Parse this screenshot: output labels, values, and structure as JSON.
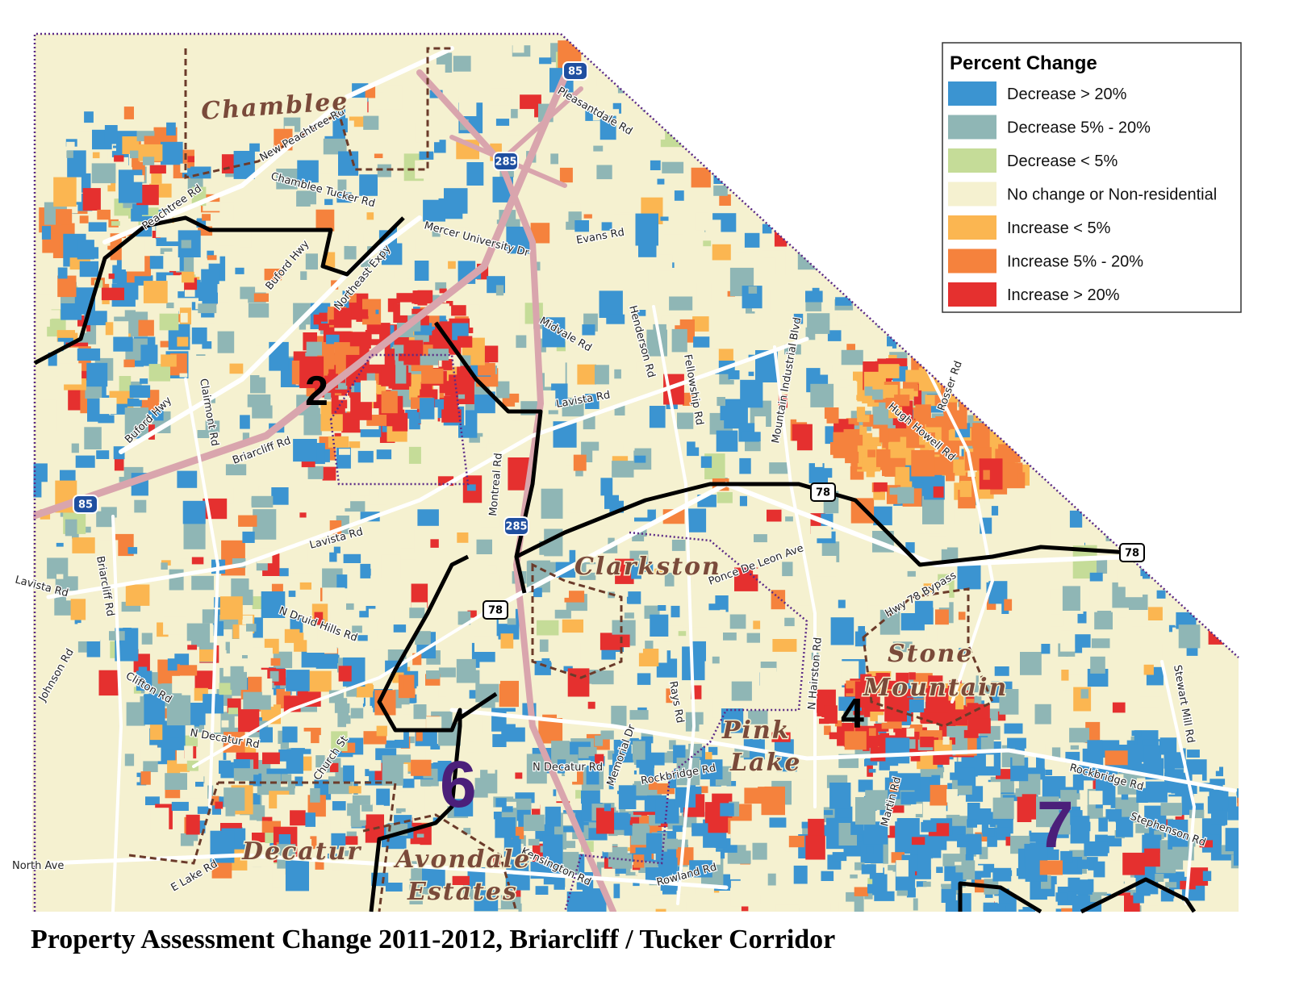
{
  "title": "Property Assessment Change 2011-2012, Briarcliff / Tucker Corridor",
  "legend": {
    "title": "Percent Change",
    "items": [
      {
        "label": "Decrease > 20%",
        "color": "#3b94d1"
      },
      {
        "label": "Decrease 5% - 20%",
        "color": "#8fb6b5"
      },
      {
        "label": "Decrease < 5%",
        "color": "#c5dc98"
      },
      {
        "label": "No change or Non-residential",
        "color": "#f5f1d0"
      },
      {
        "label": "Increase < 5%",
        "color": "#fbb651"
      },
      {
        "label": "Increase 5% - 20%",
        "color": "#f5823d"
      },
      {
        "label": "Increase > 20%",
        "color": "#e5302f"
      }
    ]
  },
  "places": {
    "chamblee": "Chamblee",
    "clarkston": "Clarkston",
    "stone_mountain": [
      "Stone",
      "Mountain"
    ],
    "pine_lake": [
      "Pink",
      "Lake"
    ],
    "decatur": "Decatur",
    "avondale_estates": [
      "Avondale",
      "Estates"
    ]
  },
  "districts": [
    "2",
    "4",
    "6",
    "7"
  ],
  "shields": [
    "85",
    "285",
    "85",
    "285",
    "78",
    "78",
    "78"
  ],
  "roads": [
    "Peachtree Rd",
    "New Peachtree Rd",
    "Buford Hwy",
    "Northeast Expy",
    "Briarcliff Rd",
    "Lavista Rd",
    "Montreal Rd",
    "Midvale Rd",
    "Mountain Industrial Blvd",
    "Rosser Rd",
    "Hugh Howell Rd",
    "Ponce De Leon Ave",
    "Hwy 78 Bypass",
    "Rays Rd",
    "N Hairston Rd",
    "Rockbridge Rd",
    "Martin Rd",
    "Rowland Rd",
    "Kensington Rd",
    "N Decatur Rd",
    "Church St",
    "Clifton Rd",
    "Lavista Rd",
    "Briarcliff Rd",
    "Johnson Rd",
    "North Ave",
    "E Lake Rd",
    "Stewart Mill Rd",
    "Stephenson Rd",
    "Rockbridge Rd",
    "Evans Rd",
    "Mercer University Dr",
    "Chamblee Tucker Rd",
    "Pleasantdale Rd",
    "Fellowship Rd",
    "Henderson Rd",
    "N Druid Hills Rd",
    "Clairmont Rd",
    "Memorial Dr",
    "N Decatur Rd",
    "Buford Hwy",
    "Lavista Rd"
  ]
}
